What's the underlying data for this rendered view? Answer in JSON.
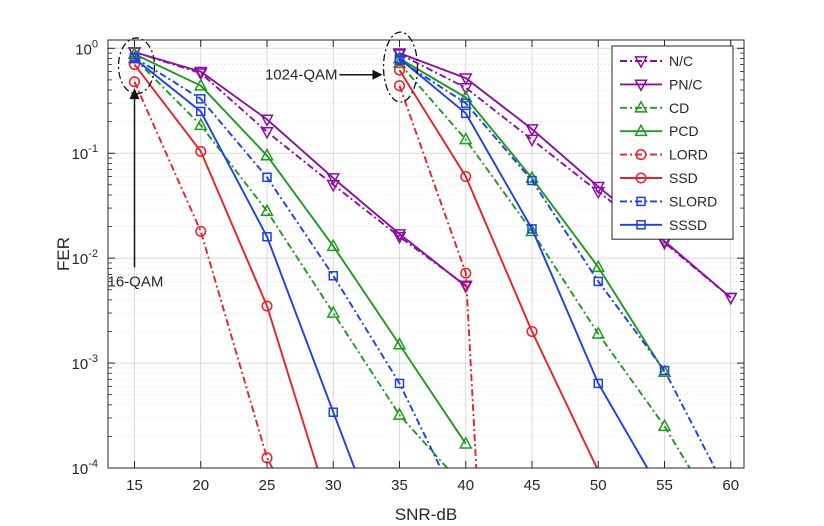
{
  "chart_data": {
    "type": "line",
    "xlabel": "SNR-dB",
    "ylabel": "FER",
    "xlim": [
      13,
      61
    ],
    "ylim": [
      0.0001,
      1.2
    ],
    "yscale": "log",
    "grid": true,
    "x_ticks": [
      15,
      20,
      25,
      30,
      35,
      40,
      45,
      50,
      55,
      60
    ],
    "x_tick_labels": [
      "15",
      "20",
      "25",
      "30",
      "35",
      "40",
      "45",
      "50",
      "55",
      "60"
    ],
    "y_ticks": [
      {
        "value": 1,
        "base": "10",
        "exp": "0"
      },
      {
        "value": 0.1,
        "base": "10",
        "exp": "-1"
      },
      {
        "value": 0.01,
        "base": "10",
        "exp": "-2"
      },
      {
        "value": 0.001,
        "base": "10",
        "exp": "-3"
      },
      {
        "value": 0.0001,
        "base": "10",
        "exp": "-4"
      }
    ],
    "legend_position": "top-right",
    "annotations": [
      {
        "text": "1024-QAM",
        "kind": "arrow-right",
        "x": 35,
        "y": 0.62
      },
      {
        "text": "16-QAM",
        "kind": "arrow-up",
        "x": 15,
        "y": 0.006
      }
    ],
    "series": [
      {
        "name": "N/C",
        "color": "#8B10A0",
        "dash": "dashdot",
        "marker": "tri-down",
        "points": [
          [
            15,
            0.92
          ],
          [
            20,
            0.58
          ],
          [
            25,
            0.16
          ],
          [
            30,
            0.05
          ],
          [
            35,
            0.016
          ],
          [
            40,
            0.0055
          ],
          [
            null,
            null
          ],
          [
            35,
            0.88
          ],
          [
            40,
            0.42
          ],
          [
            45,
            0.135
          ],
          [
            50,
            0.043
          ],
          [
            55,
            0.014
          ],
          [
            60,
            0.0042
          ]
        ]
      },
      {
        "name": "PN/C",
        "color": "#8B10A0",
        "dash": "solid",
        "marker": "tri-down",
        "points": [
          [
            15,
            0.92
          ],
          [
            20,
            0.6
          ],
          [
            25,
            0.21
          ],
          [
            30,
            0.058
          ],
          [
            35,
            0.017
          ],
          [
            40,
            0.0054
          ],
          [
            null,
            null
          ],
          [
            35,
            0.9
          ],
          [
            40,
            0.52
          ],
          [
            45,
            0.17
          ],
          [
            50,
            0.048
          ],
          [
            55,
            0.0145
          ],
          [
            60,
            0.0042
          ]
        ]
      },
      {
        "name": "CD",
        "color": "#1F9A1F",
        "dash": "dashdot",
        "marker": "tri-up",
        "points": [
          [
            15,
            0.8
          ],
          [
            20,
            0.185
          ],
          [
            25,
            0.028
          ],
          [
            30,
            0.003
          ],
          [
            35,
            0.00032
          ],
          [
            38.6,
            0.0001
          ],
          [
            null,
            null
          ],
          [
            35,
            0.72
          ],
          [
            40,
            0.135
          ],
          [
            45,
            0.018
          ],
          [
            50,
            0.0019
          ],
          [
            55,
            0.00025
          ],
          [
            56.9,
            0.0001
          ]
        ]
      },
      {
        "name": "PCD",
        "color": "#1F9A1F",
        "dash": "solid",
        "marker": "tri-up",
        "points": [
          [
            15,
            0.88
          ],
          [
            20,
            0.44
          ],
          [
            25,
            0.095
          ],
          [
            30,
            0.013
          ],
          [
            35,
            0.0015
          ],
          [
            40,
            0.00017
          ],
          [
            null,
            null
          ],
          [
            35,
            0.8
          ],
          [
            40,
            0.34
          ],
          [
            45,
            0.058
          ],
          [
            50,
            0.0082
          ],
          [
            55,
            0.00082
          ]
        ]
      },
      {
        "name": "LORD",
        "color": "#E8202A",
        "dash": "dashdot",
        "marker": "circle",
        "points": [
          [
            15,
            0.48
          ],
          [
            20,
            0.018
          ],
          [
            25,
            0.000125
          ],
          [
            25.4,
            0.0001
          ],
          [
            null,
            null
          ],
          [
            35,
            0.44
          ],
          [
            40,
            0.0072
          ],
          [
            40.8,
            0.0001
          ]
        ]
      },
      {
        "name": "SSD",
        "color": "#E8202A",
        "dash": "solid",
        "marker": "circle",
        "points": [
          [
            15,
            0.7
          ],
          [
            20,
            0.104
          ],
          [
            25,
            0.0035
          ],
          [
            28.8,
            0.0001
          ],
          [
            null,
            null
          ],
          [
            35,
            0.62
          ],
          [
            40,
            0.06
          ],
          [
            45,
            0.002
          ],
          [
            49.9,
            0.0001
          ]
        ]
      },
      {
        "name": "SLORD",
        "color": "#1E3FE8",
        "dash": "dashdot",
        "marker": "square",
        "points": [
          [
            15,
            0.82
          ],
          [
            20,
            0.33
          ],
          [
            25,
            0.059
          ],
          [
            30,
            0.0068
          ],
          [
            35,
            0.00064
          ],
          [
            38.1,
            0.0001
          ],
          [
            null,
            null
          ],
          [
            35,
            0.77
          ],
          [
            40,
            0.3
          ],
          [
            45,
            0.055
          ],
          [
            50,
            0.006
          ],
          [
            55,
            0.00085
          ],
          [
            58.8,
            0.0001
          ]
        ]
      },
      {
        "name": "SSSD",
        "color": "#1E3FE8",
        "dash": "solid",
        "marker": "square",
        "points": [
          [
            15,
            0.8
          ],
          [
            20,
            0.25
          ],
          [
            25,
            0.016
          ],
          [
            30,
            0.00034
          ],
          [
            31.6,
            0.0001
          ],
          [
            null,
            null
          ],
          [
            35,
            0.8
          ],
          [
            40,
            0.24
          ],
          [
            45,
            0.019
          ],
          [
            50,
            0.00064
          ],
          [
            53.7,
            0.0001
          ]
        ]
      }
    ]
  }
}
